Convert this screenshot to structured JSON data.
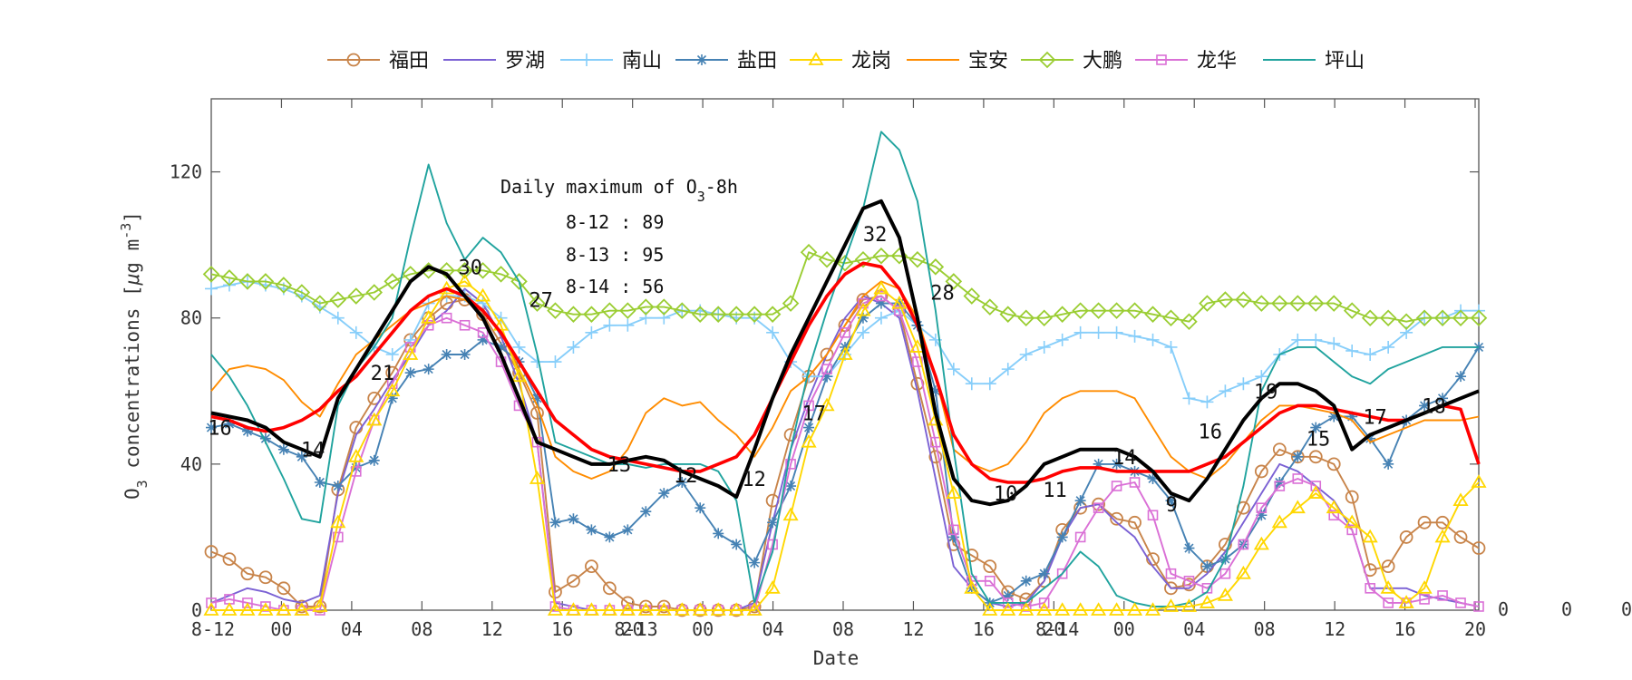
{
  "chart_data": {
    "type": "line",
    "xlabel": "Date",
    "ylabel": "O",
    "ylabel_sub": "3",
    "ylabel_rest": " concentrations [",
    "ylabel_unit_mu": "μ",
    "ylabel_unit_g": "g m",
    "ylabel_unit_sup": "-3",
    "ylabel_end": "]",
    "ylim": [
      0,
      140
    ],
    "xlim": [
      0,
      70
    ],
    "yticks": [
      0,
      40,
      80,
      120
    ],
    "xticks": [
      {
        "x": 0,
        "label": "8-12"
      },
      {
        "x": 4,
        "label": "00"
      },
      {
        "x": 8,
        "label": "04"
      },
      {
        "x": 12,
        "label": "08"
      },
      {
        "x": 16,
        "label": "12"
      },
      {
        "x": 20,
        "label": "16"
      },
      {
        "x": 24,
        "label": "20"
      },
      {
        "x": 24.1,
        "label": "8-13"
      },
      {
        "x": 28,
        "label": "00"
      },
      {
        "x": 32,
        "label": "04"
      },
      {
        "x": 36,
        "label": "08"
      },
      {
        "x": 40,
        "label": "12"
      },
      {
        "x": 44,
        "label": "16"
      },
      {
        "x": 48,
        "label": "20"
      },
      {
        "x": 48.1,
        "label": "8-14"
      },
      {
        "x": 52,
        "label": "00"
      },
      {
        "x": 56,
        "label": "04"
      },
      {
        "x": 60,
        "label": "08"
      },
      {
        "x": 64,
        "label": "12"
      },
      {
        "x": 68,
        "label": "16"
      },
      {
        "x": 72,
        "label": "20"
      }
    ],
    "right_stray_labels": [
      "0",
      "0",
      "0"
    ],
    "grid": false,
    "legend_position": "top",
    "annotation": {
      "title_main": "Daily maximum of O",
      "title_sub": "3",
      "title_end": "-8h",
      "lines": [
        "8-12 : 89",
        "8-13 : 95",
        "8-14 : 56"
      ]
    },
    "colors": {
      "mean_black": "#000000",
      "mean_red": "#ff0000"
    },
    "series": [
      {
        "name": "福田",
        "color": "#c8844a",
        "marker": "circle",
        "values": [
          16,
          14,
          10,
          9,
          6,
          1,
          1,
          33,
          50,
          58,
          65,
          74,
          80,
          84,
          85,
          81,
          73,
          65,
          54,
          5,
          8,
          12,
          6,
          2,
          1,
          1,
          0,
          0,
          0,
          0,
          1,
          30,
          48,
          64,
          70,
          78,
          85,
          86,
          82,
          62,
          42,
          18,
          15,
          12,
          5,
          3,
          8,
          22,
          28,
          29,
          25,
          24,
          14,
          6,
          7,
          12,
          18,
          28,
          38,
          44,
          42,
          42,
          40,
          31,
          11,
          12,
          20,
          24,
          24,
          20,
          17
        ]
      },
      {
        "name": "罗湖",
        "color": "#7b61d4",
        "marker": "none",
        "values": [
          2,
          4,
          6,
          5,
          3,
          2,
          4,
          32,
          48,
          55,
          63,
          70,
          78,
          82,
          88,
          84,
          75,
          62,
          46,
          2,
          1,
          0,
          0,
          0,
          0,
          0,
          0,
          0,
          0,
          0,
          2,
          24,
          44,
          58,
          70,
          80,
          86,
          84,
          80,
          60,
          36,
          12,
          6,
          2,
          1,
          2,
          8,
          20,
          28,
          29,
          24,
          20,
          12,
          6,
          6,
          10,
          16,
          24,
          32,
          40,
          38,
          34,
          30,
          22,
          6,
          6,
          6,
          4,
          3,
          2,
          1
        ]
      },
      {
        "name": "南山",
        "color": "#87cefa",
        "marker": "plus",
        "values": [
          88,
          89,
          90,
          89,
          88,
          86,
          83,
          80,
          76,
          72,
          70,
          74,
          84,
          86,
          86,
          84,
          80,
          72,
          68,
          68,
          72,
          76,
          78,
          78,
          80,
          80,
          82,
          82,
          81,
          80,
          80,
          76,
          68,
          64,
          64,
          70,
          76,
          80,
          82,
          78,
          74,
          66,
          62,
          62,
          66,
          70,
          72,
          74,
          76,
          76,
          76,
          75,
          74,
          72,
          58,
          57,
          60,
          62,
          64,
          70,
          74,
          74,
          73,
          71,
          70,
          72,
          76,
          80,
          80,
          82,
          82
        ]
      },
      {
        "name": "盐田",
        "color": "#4682b4",
        "marker": "asterisk",
        "values": [
          50,
          51,
          49,
          47,
          44,
          42,
          35,
          34,
          39,
          41,
          58,
          65,
          66,
          70,
          70,
          74,
          72,
          68,
          58,
          24,
          25,
          22,
          20,
          22,
          27,
          32,
          35,
          28,
          21,
          18,
          13,
          24,
          34,
          50,
          64,
          72,
          80,
          84,
          84,
          78,
          60,
          20,
          6,
          2,
          4,
          8,
          10,
          20,
          30,
          40,
          40,
          38,
          36,
          30,
          17,
          12,
          14,
          18,
          26,
          35,
          42,
          50,
          53,
          53,
          47,
          40,
          52,
          56,
          58,
          64,
          72
        ]
      },
      {
        "name": "龙岗",
        "color": "#ffd700",
        "marker": "triangle",
        "values": [
          0,
          0,
          0,
          0,
          0,
          0,
          1,
          24,
          42,
          52,
          60,
          70,
          80,
          88,
          90,
          86,
          78,
          64,
          36,
          0,
          0,
          0,
          0,
          0,
          0,
          0,
          0,
          0,
          0,
          0,
          0,
          6,
          26,
          46,
          56,
          70,
          82,
          88,
          84,
          72,
          52,
          32,
          6,
          0,
          0,
          0,
          0,
          0,
          0,
          0,
          0,
          0,
          0,
          1,
          1,
          2,
          4,
          10,
          18,
          24,
          28,
          32,
          28,
          24,
          20,
          6,
          2,
          6,
          20,
          30,
          35
        ]
      },
      {
        "name": "宝安",
        "color": "#ff8c00",
        "marker": "none",
        "values": [
          60,
          66,
          67,
          66,
          63,
          57,
          53,
          62,
          70,
          74,
          78,
          82,
          84,
          86,
          85,
          82,
          76,
          66,
          56,
          42,
          38,
          36,
          38,
          44,
          54,
          58,
          56,
          57,
          52,
          48,
          42,
          50,
          60,
          64,
          70,
          78,
          86,
          90,
          88,
          80,
          64,
          44,
          40,
          38,
          40,
          46,
          54,
          58,
          60,
          60,
          60,
          58,
          50,
          42,
          38,
          36,
          40,
          46,
          52,
          56,
          56,
          55,
          54,
          52,
          46,
          48,
          50,
          52,
          52,
          52,
          53
        ]
      },
      {
        "name": "大鹏",
        "color": "#9acd32",
        "marker": "diamond",
        "values": [
          92,
          91,
          90,
          90,
          89,
          87,
          84,
          85,
          86,
          87,
          90,
          92,
          93,
          93,
          93,
          93,
          92,
          90,
          84,
          82,
          81,
          81,
          82,
          82,
          83,
          83,
          82,
          81,
          81,
          81,
          81,
          81,
          84,
          98,
          96,
          95,
          96,
          97,
          97,
          96,
          94,
          90,
          86,
          83,
          81,
          80,
          80,
          81,
          82,
          82,
          82,
          82,
          81,
          80,
          79,
          84,
          85,
          85,
          84,
          84,
          84,
          84,
          84,
          82,
          80,
          80,
          79,
          80,
          80,
          80,
          80
        ]
      },
      {
        "name": "龙华",
        "color": "#da70d6",
        "marker": "square",
        "values": [
          2,
          3,
          2,
          1,
          0,
          0,
          0,
          20,
          38,
          52,
          62,
          72,
          78,
          80,
          78,
          76,
          68,
          56,
          46,
          1,
          0,
          0,
          0,
          0,
          0,
          0,
          0,
          0,
          0,
          0,
          0,
          18,
          40,
          56,
          66,
          76,
          84,
          86,
          82,
          68,
          46,
          22,
          8,
          8,
          2,
          1,
          2,
          10,
          20,
          28,
          34,
          35,
          26,
          10,
          8,
          6,
          10,
          18,
          28,
          34,
          36,
          34,
          26,
          22,
          6,
          2,
          2,
          3,
          4,
          2,
          1
        ]
      },
      {
        "name": "坪山",
        "color": "#20a39e",
        "marker": "none",
        "values": [
          70,
          64,
          56,
          46,
          36,
          25,
          24,
          56,
          66,
          72,
          80,
          102,
          122,
          106,
          96,
          102,
          98,
          90,
          70,
          46,
          44,
          42,
          40,
          40,
          39,
          40,
          40,
          40,
          38,
          30,
          2,
          16,
          44,
          66,
          82,
          96,
          110,
          131,
          126,
          112,
          82,
          44,
          10,
          2,
          2,
          2,
          6,
          10,
          16,
          12,
          4,
          2,
          1,
          1,
          2,
          5,
          14,
          34,
          60,
          70,
          72,
          72,
          68,
          64,
          62,
          66,
          68,
          70,
          72,
          72,
          72
        ]
      },
      {
        "name": "",
        "color": "#000000",
        "marker": "none",
        "role": "mean-black",
        "values": [
          54,
          53,
          52,
          50,
          46,
          44,
          42,
          58,
          66,
          74,
          82,
          90,
          94,
          92,
          86,
          80,
          70,
          58,
          46,
          44,
          42,
          40,
          40,
          41,
          42,
          41,
          38,
          36,
          34,
          31,
          44,
          58,
          70,
          80,
          90,
          100,
          110,
          112,
          102,
          80,
          54,
          36,
          30,
          29,
          30,
          34,
          40,
          42,
          44,
          44,
          44,
          42,
          38,
          32,
          30,
          36,
          44,
          52,
          58,
          62,
          62,
          60,
          56,
          44,
          48,
          50,
          52,
          54,
          56,
          58,
          60
        ]
      },
      {
        "name": "",
        "color": "#ff0000",
        "marker": "none",
        "role": "mean-red",
        "values": [
          53,
          52,
          50,
          49,
          50,
          52,
          55,
          60,
          64,
          70,
          76,
          82,
          86,
          88,
          86,
          82,
          76,
          68,
          60,
          52,
          48,
          44,
          42,
          41,
          40,
          39,
          38,
          38,
          40,
          42,
          48,
          58,
          68,
          78,
          86,
          92,
          95,
          94,
          88,
          78,
          64,
          48,
          40,
          36,
          35,
          35,
          36,
          38,
          39,
          39,
          38,
          38,
          38,
          38,
          38,
          40,
          42,
          46,
          50,
          54,
          56,
          56,
          55,
          54,
          53,
          52,
          52,
          54,
          56,
          55,
          40
        ]
      }
    ],
    "station_labels": [
      {
        "x": 0.8,
        "y": 50,
        "text": "16"
      },
      {
        "x": 9.5,
        "y": 44,
        "text": "14"
      },
      {
        "x": 16,
        "y": 65,
        "text": "21"
      },
      {
        "x": 24.2,
        "y": 94,
        "text": "30"
      },
      {
        "x": 30.8,
        "y": 85,
        "text": "27"
      },
      {
        "x": 38.1,
        "y": 40,
        "text": "13"
      },
      {
        "x": 44.3,
        "y": 37,
        "text": "12"
      },
      {
        "x": 50.7,
        "y": 36,
        "text": "12"
      },
      {
        "x": 56.3,
        "y": 54,
        "text": "17"
      },
      {
        "x": 62.0,
        "y": 103,
        "text": "32"
      },
      {
        "x": 68.3,
        "y": 87,
        "text": "28"
      },
      {
        "x": 74.2,
        "y": 32,
        "text": "10"
      },
      {
        "x": 78.8,
        "y": 33,
        "text": "11"
      },
      {
        "x": 85.3,
        "y": 42,
        "text": "14"
      },
      {
        "x": 89.7,
        "y": 29,
        "text": "9"
      },
      {
        "x": 93.3,
        "y": 49,
        "text": "16"
      },
      {
        "x": 98.5,
        "y": 60,
        "text": "19"
      },
      {
        "x": 103.4,
        "y": 47,
        "text": "15"
      },
      {
        "x": 108.7,
        "y": 53,
        "text": "17"
      },
      {
        "x": 114.2,
        "y": 56,
        "text": "18"
      }
    ]
  }
}
